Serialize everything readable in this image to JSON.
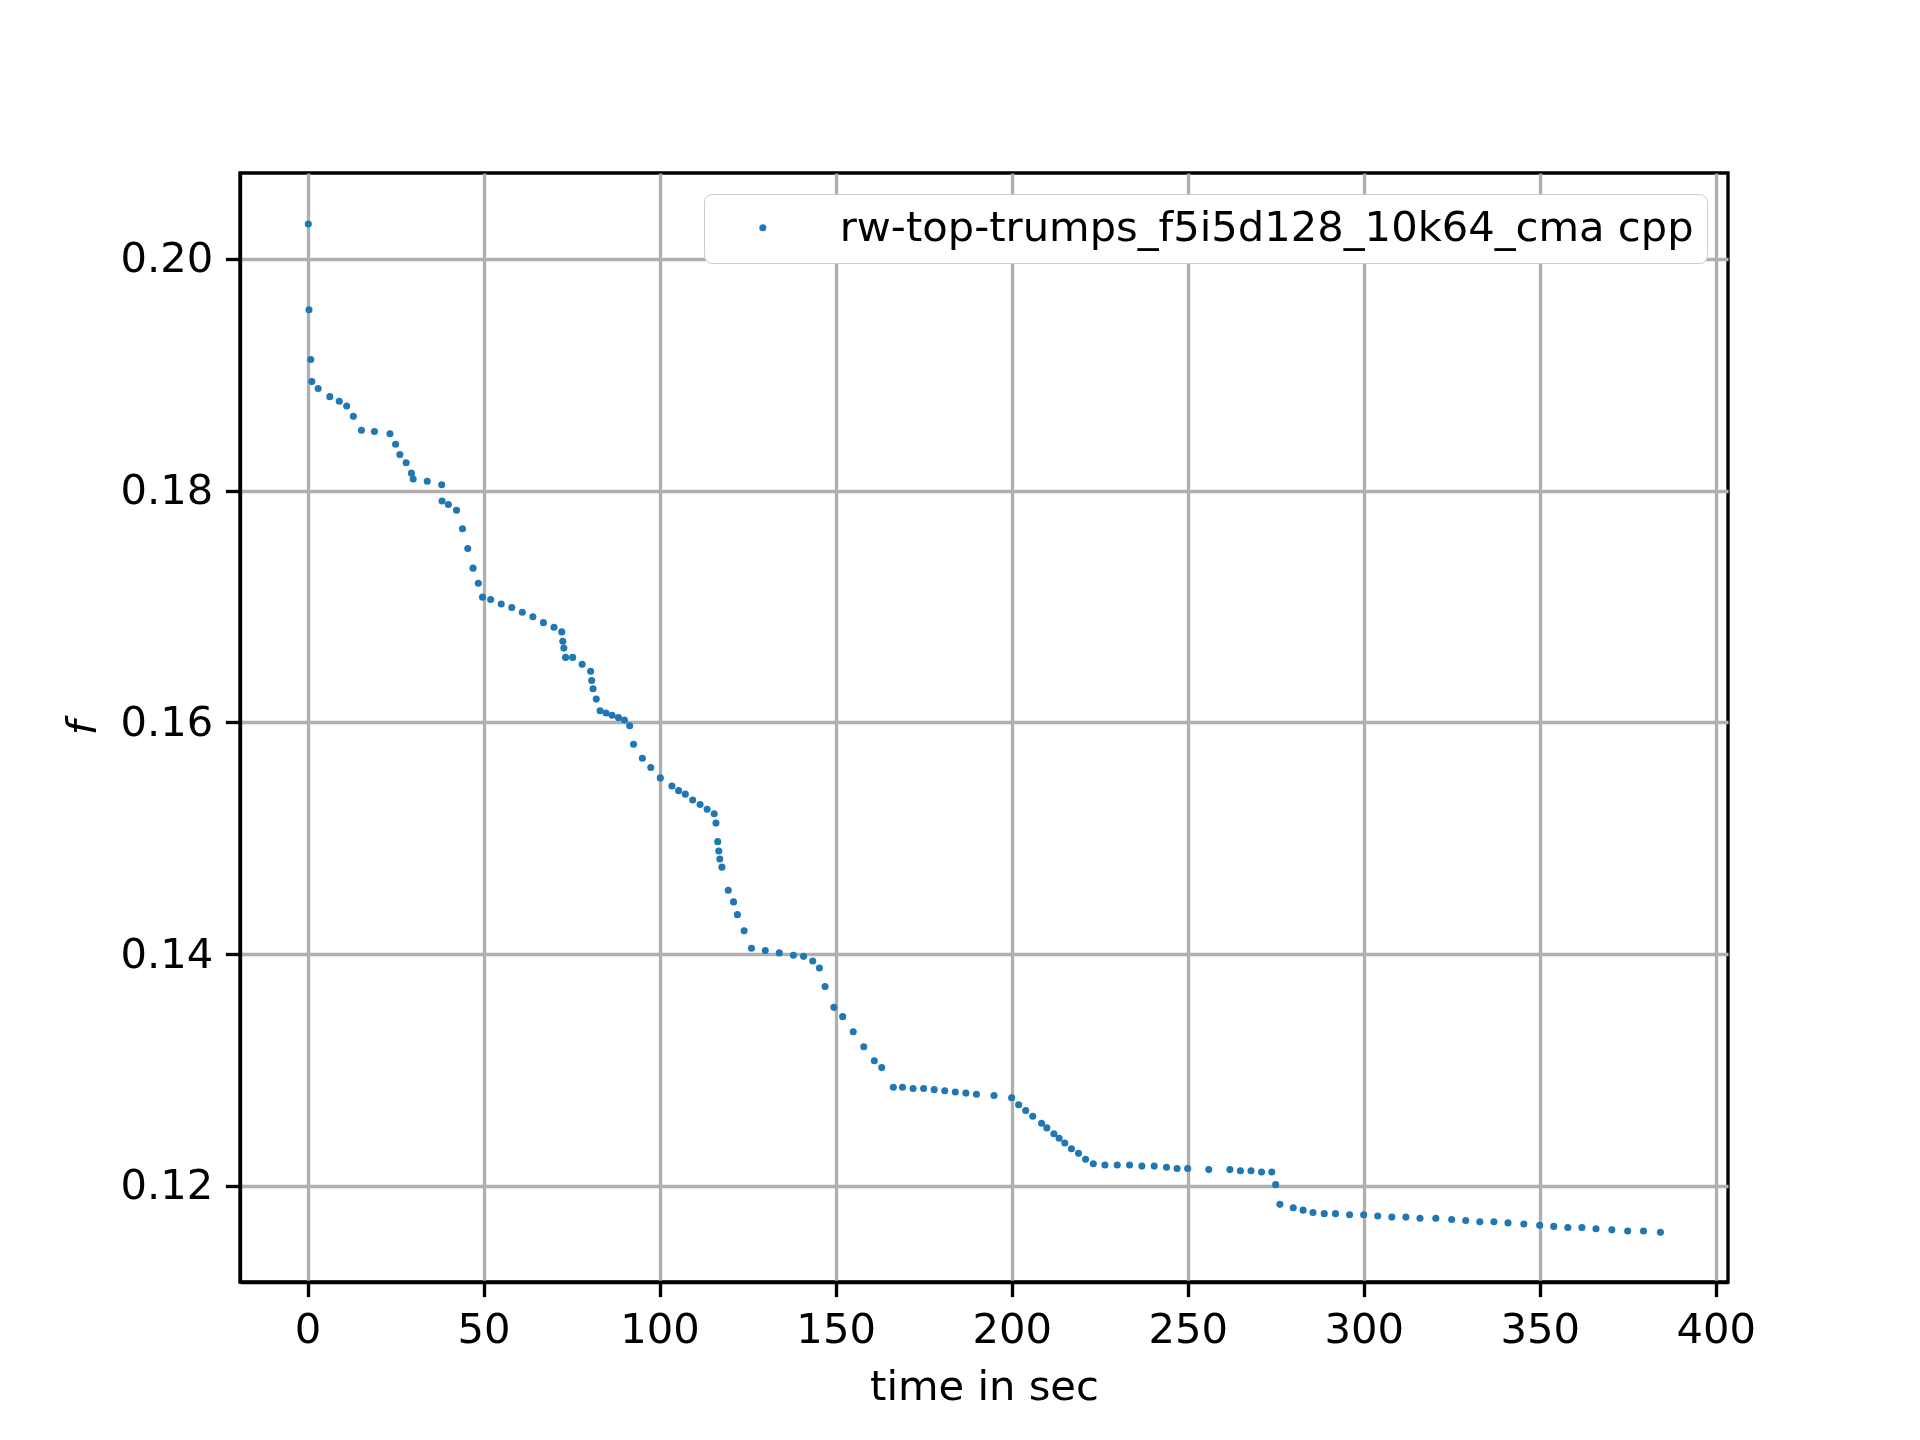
{
  "chart_data": {
    "type": "scatter",
    "xlabel": "time in sec",
    "ylabel": "f",
    "xlim": [
      -19.2,
      403.5
    ],
    "ylim": [
      0.1117,
      0.2074
    ],
    "xticks": [
      0,
      50,
      100,
      150,
      200,
      250,
      300,
      350,
      400
    ],
    "yticks": [
      0.12,
      0.14,
      0.16,
      0.18,
      {
        "value": 0.2,
        "label": "0.20"
      }
    ],
    "grid": true,
    "legend": "top right",
    "marker": "circle",
    "x": [
      0.2,
      0.4,
      0.9,
      1.2,
      3,
      6.3,
      9,
      11.1,
      13,
      15.3,
      19,
      23.4,
      25,
      26.2,
      28,
      29.5,
      30,
      34,
      38.1,
      38.2,
      40,
      42.3,
      44,
      45.5,
      47.0,
      48.5,
      49.7,
      52,
      55,
      58,
      61,
      64,
      67,
      70,
      72.2,
      72.5,
      72.8,
      73.3,
      75.3,
      78,
      80.4,
      80.7,
      81.1,
      82,
      83.1,
      84.8,
      86.5,
      88.3,
      90.0,
      91.5,
      92.6,
      95.1,
      97.5,
      100.2,
      103.5,
      105.4,
      107.3,
      109.4,
      111.5,
      113.5,
      115.5,
      116.0,
      116.5,
      116.8,
      117.1,
      117.7,
      119.5,
      121,
      122.1,
      124,
      126.1,
      130,
      134,
      138,
      140.9,
      143.5,
      145.4,
      147,
      149.5,
      152,
      155,
      158,
      161,
      163.1,
      166.4,
      169,
      172,
      175,
      178,
      181,
      184,
      187,
      190,
      195,
      200,
      202,
      204,
      206,
      208.5,
      210,
      212,
      213.5,
      215.1,
      217,
      219,
      221,
      223.2,
      226.5,
      230,
      233.5,
      237,
      240.5,
      244,
      247,
      250,
      256,
      262,
      265,
      268,
      271,
      273.9,
      275.0,
      276.2,
      280,
      282.8,
      285.6,
      288.8,
      292,
      296,
      300,
      304,
      308,
      312,
      316,
      320.5,
      325,
      329,
      333,
      337,
      341,
      345.5,
      350,
      354,
      358,
      362,
      366,
      370.5,
      375,
      379.5,
      384.3
    ],
    "series": [
      {
        "name": "rw-top-trumps_f5i5d128_10k64_cma cpp",
        "color": "#1f77b4",
        "values": [
          0.203,
          0.1956,
          0.1913,
          0.1894,
          0.1888,
          0.1881,
          0.1877,
          0.1873,
          0.1864,
          0.1852,
          0.1851,
          0.1849,
          0.184,
          0.1831,
          0.1824,
          0.1815,
          0.181,
          0.1808,
          0.1805,
          0.1791,
          0.1788,
          0.1783,
          0.1767,
          0.175,
          0.1733,
          0.172,
          0.1708,
          0.1706,
          0.1702,
          0.1699,
          0.1695,
          0.1691,
          0.1686,
          0.1682,
          0.1678,
          0.167,
          0.1664,
          0.1656,
          0.1656,
          0.165,
          0.1644,
          0.1636,
          0.1629,
          0.162,
          0.161,
          0.1608,
          0.1606,
          0.1604,
          0.1602,
          0.1597,
          0.1581,
          0.1569,
          0.1561,
          0.1552,
          0.1545,
          0.1541,
          0.1538,
          0.1533,
          0.1529,
          0.1525,
          0.1521,
          0.1513,
          0.1497,
          0.1489,
          0.1482,
          0.1475,
          0.1455,
          0.1445,
          0.1434,
          0.142,
          0.1405,
          0.1403,
          0.1401,
          0.1399,
          0.1398,
          0.1394,
          0.1388,
          0.1372,
          0.1354,
          0.1346,
          0.1333,
          0.132,
          0.1308,
          0.1302,
          0.1285,
          0.1285,
          0.1284,
          0.1284,
          0.1283,
          0.1282,
          0.1281,
          0.128,
          0.1279,
          0.1278,
          0.1276,
          0.127,
          0.1265,
          0.126,
          0.1254,
          0.125,
          0.1245,
          0.1241,
          0.1237,
          0.1232,
          0.1228,
          0.1223,
          0.1219,
          0.1218,
          0.1218,
          0.1218,
          0.1217,
          0.1217,
          0.1216,
          0.1215,
          0.1215,
          0.1214,
          0.1214,
          0.1213,
          0.1213,
          0.1212,
          0.1212,
          0.1201,
          0.1184,
          0.1181,
          0.1179,
          0.1177,
          0.1176,
          0.1176,
          0.1175,
          0.1175,
          0.1174,
          0.1173,
          0.1173,
          0.1172,
          0.1172,
          0.1171,
          0.117,
          0.1169,
          0.1169,
          0.1168,
          0.1167,
          0.1166,
          0.1165,
          0.1164,
          0.1164,
          0.1163,
          0.1162,
          0.1161,
          0.1161,
          0.116
        ]
      }
    ]
  }
}
